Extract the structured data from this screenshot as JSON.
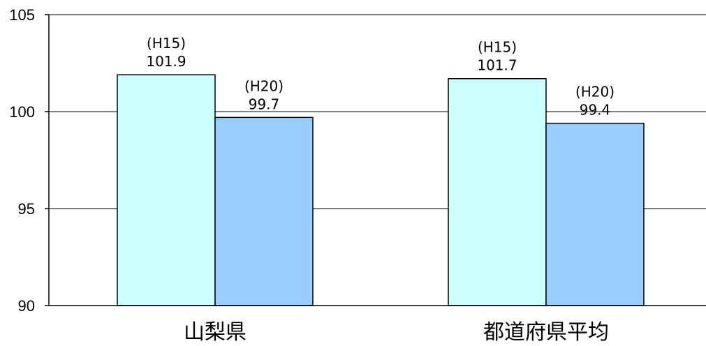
{
  "chart_data": {
    "type": "bar",
    "categories": [
      "山梨県",
      "都道府県平均"
    ],
    "series": [
      {
        "name": "",
        "values": [
          101.9,
          101.7
        ],
        "color": "#ccffff"
      },
      {
        "name": "",
        "values": [
          99.7,
          99.4
        ],
        "color": "#99ccff"
      }
    ],
    "data_labels": [
      [
        {
          "period": "(H15)",
          "value": "101.9"
        },
        {
          "period": "(H15)",
          "value": "101.7"
        }
      ],
      [
        {
          "period": "(H20)",
          "value": "99.7"
        },
        {
          "period": "(H20)",
          "value": "99.4"
        }
      ]
    ],
    "y_ticks": [
      90,
      95,
      100,
      105
    ],
    "ylim": [
      90,
      105
    ],
    "grid": true,
    "legend": "none",
    "title": "",
    "xlabel": "",
    "ylabel": ""
  }
}
